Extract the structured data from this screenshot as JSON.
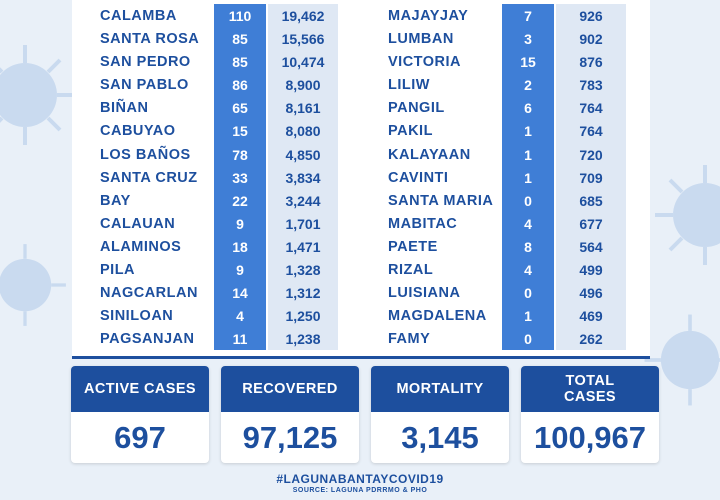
{
  "colors": {
    "brand": "#1d4f9e",
    "accent": "#3f7ed6",
    "light": "#dfe8f4"
  },
  "table": {
    "left": [
      {
        "name": "CALAMBA",
        "active": "110",
        "total": "19,462"
      },
      {
        "name": "SANTA ROSA",
        "active": "85",
        "total": "15,566"
      },
      {
        "name": "SAN PEDRO",
        "active": "85",
        "total": "10,474"
      },
      {
        "name": "SAN PABLO",
        "active": "86",
        "total": "8,900"
      },
      {
        "name": "BIÑAN",
        "active": "65",
        "total": "8,161"
      },
      {
        "name": "CABUYAO",
        "active": "15",
        "total": "8,080"
      },
      {
        "name": "LOS BAÑOS",
        "active": "78",
        "total": "4,850"
      },
      {
        "name": "SANTA CRUZ",
        "active": "33",
        "total": "3,834"
      },
      {
        "name": "BAY",
        "active": "22",
        "total": "3,244"
      },
      {
        "name": "CALAUAN",
        "active": "9",
        "total": "1,701"
      },
      {
        "name": "ALAMINOS",
        "active": "18",
        "total": "1,471"
      },
      {
        "name": "PILA",
        "active": "9",
        "total": "1,328"
      },
      {
        "name": "NAGCARLAN",
        "active": "14",
        "total": "1,312"
      },
      {
        "name": "SINILOAN",
        "active": "4",
        "total": "1,250"
      },
      {
        "name": "PAGSANJAN",
        "active": "11",
        "total": "1,238"
      }
    ],
    "right": [
      {
        "name": "MAJAYJAY",
        "active": "7",
        "total": "926"
      },
      {
        "name": "LUMBAN",
        "active": "3",
        "total": "902"
      },
      {
        "name": "VICTORIA",
        "active": "15",
        "total": "876"
      },
      {
        "name": "LILIW",
        "active": "2",
        "total": "783"
      },
      {
        "name": "PANGIL",
        "active": "6",
        "total": "764"
      },
      {
        "name": "PAKIL",
        "active": "1",
        "total": "764"
      },
      {
        "name": "KALAYAAN",
        "active": "1",
        "total": "720"
      },
      {
        "name": "CAVINTI",
        "active": "1",
        "total": "709"
      },
      {
        "name": "SANTA MARIA",
        "active": "0",
        "total": "685"
      },
      {
        "name": "MABITAC",
        "active": "4",
        "total": "677"
      },
      {
        "name": "PAETE",
        "active": "8",
        "total": "564"
      },
      {
        "name": "RIZAL",
        "active": "4",
        "total": "499"
      },
      {
        "name": "LUISIANA",
        "active": "0",
        "total": "496"
      },
      {
        "name": "MAGDALENA",
        "active": "1",
        "total": "469"
      },
      {
        "name": "FAMY",
        "active": "0",
        "total": "262"
      }
    ]
  },
  "summary": {
    "active": {
      "label": "ACTIVE CASES",
      "value": "697"
    },
    "recovered": {
      "label": "RECOVERED",
      "value": "97,125"
    },
    "mortality": {
      "label": "MORTALITY",
      "value": "3,145"
    },
    "total": {
      "label": "TOTAL CASES",
      "value": "100,967"
    }
  },
  "footer": {
    "hashtag": "#LAGUNABANTAYCOVID19",
    "source": "SOURCE: LAGUNA PDRRMO & PHO"
  }
}
